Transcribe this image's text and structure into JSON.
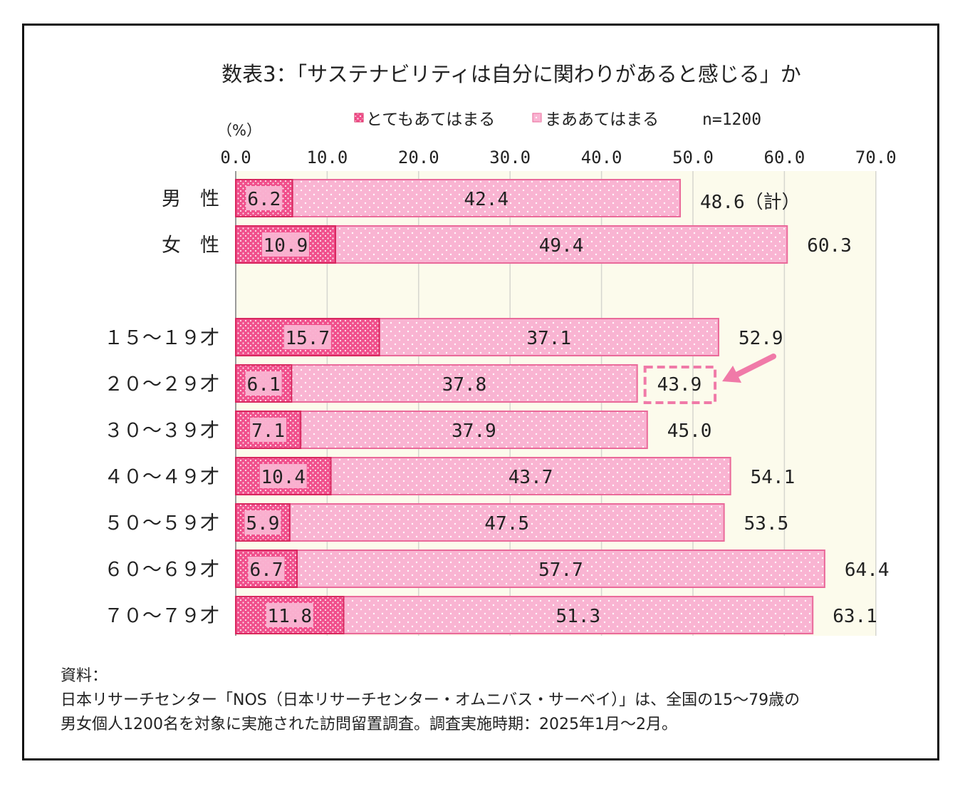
{
  "chart_data": {
    "type": "bar",
    "stacked": true,
    "orientation": "horizontal",
    "title": "数表3：「サステナビリティは自分に関わりがあると感じる」か",
    "unit_label": "（%）",
    "sample_note": "n=1200",
    "xlim": [
      0,
      70
    ],
    "x_ticks": [
      "0.0",
      "10.0",
      "20.0",
      "30.0",
      "40.0",
      "50.0",
      "60.0",
      "70.0"
    ],
    "grid": true,
    "legend_position": "top",
    "total_suffix": "（計）",
    "colors": {
      "strong": "#f0508c",
      "mild": "#f9b4d2",
      "strong_edge": "#d8285f",
      "mild_edge": "#ea6a9a",
      "plot_bg": "#fcfbec",
      "arrow": "#f07aa8"
    },
    "categories": [
      "男　性",
      "女　性",
      "１５～１９才",
      "２０～２９才",
      "３０～３９才",
      "４０～４９才",
      "５０～５９才",
      "６０～６９才",
      "７０～７９才"
    ],
    "series": [
      {
        "name": "とてもあてはまる",
        "values": [
          6.2,
          10.9,
          15.7,
          6.1,
          7.1,
          10.4,
          5.9,
          6.7,
          11.8
        ]
      },
      {
        "name": "まああてはまる",
        "values": [
          42.4,
          49.4,
          37.1,
          37.8,
          37.9,
          43.7,
          47.5,
          57.7,
          51.3
        ]
      }
    ],
    "strong_labels": [
      "6.2",
      "10.9",
      "15.7",
      "6.1",
      "7.1",
      "10.4",
      "5.9",
      "6.7",
      "11.8"
    ],
    "mild_labels": [
      "42.4",
      "49.4",
      "37.1",
      "37.8",
      "37.9",
      "43.7",
      "47.5",
      "57.7",
      "51.3"
    ],
    "totals": [
      48.6,
      60.3,
      52.9,
      43.9,
      45.0,
      54.1,
      53.5,
      64.4,
      63.1
    ],
    "total_labels": [
      "48.6",
      "60.3",
      "52.9",
      "43.9",
      "45.0",
      "54.1",
      "53.5",
      "64.4",
      "63.1"
    ],
    "highlighted_category": "２０～２９才"
  },
  "source": {
    "heading": "資料：",
    "line1": "日本リサーチセンター「NOS（日本リサーチセンター・オムニバス・サーベイ）」は、全国の15～79歳の",
    "line2": "男女個人1200名を対象に実施された訪問留置調査。調査実施時期：2025年1月～2月。"
  }
}
